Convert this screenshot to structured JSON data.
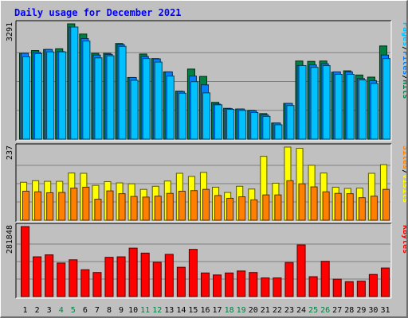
{
  "title": "Daily usage for December 2021",
  "colors": {
    "background": "#c0c0c0",
    "panel": "#c0c0c0",
    "grid": "#808080",
    "title": "#0000ff",
    "hits": "#008040",
    "files": "#0080ff",
    "pages": "#00c0ff",
    "visits": "#ffff00",
    "sites": "#ff8000",
    "kbytes": "#ff0000",
    "weekend_day": "#008040",
    "weekday": "#000000"
  },
  "chart_data": [
    {
      "type": "bar",
      "name": "hits-files-pages",
      "max_label": "3291",
      "ylim": [
        0,
        3291
      ],
      "legend": [
        "Pages",
        "/",
        "Files",
        "/",
        "Hits"
      ],
      "series": [
        {
          "name": "Hits",
          "values": [
            2450,
            2530,
            2560,
            2580,
            3291,
            3000,
            2450,
            2450,
            2730,
            1760,
            2430,
            2300,
            1920,
            1370,
            2000,
            1790,
            1050,
            880,
            860,
            820,
            730,
            460,
            1020,
            2230,
            2220,
            2230,
            1910,
            1950,
            1830,
            1770,
            2660
          ]
        },
        {
          "name": "Files",
          "values": [
            2450,
            2480,
            2560,
            2500,
            3200,
            2870,
            2400,
            2420,
            2700,
            1760,
            2360,
            2290,
            1920,
            1360,
            1800,
            1550,
            1000,
            870,
            860,
            810,
            690,
            460,
            1020,
            2100,
            2120,
            2150,
            1920,
            1920,
            1730,
            1670,
            2400
          ]
        },
        {
          "name": "Pages",
          "values": [
            2350,
            2440,
            2490,
            2490,
            3200,
            2800,
            2320,
            2380,
            2650,
            1680,
            2300,
            2200,
            1800,
            1310,
            1640,
            1320,
            980,
            850,
            820,
            760,
            650,
            410,
            960,
            2100,
            2050,
            2100,
            1850,
            1850,
            1690,
            1590,
            2300
          ]
        }
      ]
    },
    {
      "type": "bar",
      "name": "visits-sites",
      "max_label": "237",
      "ylim": [
        0,
        237
      ],
      "legend": [
        "Sites",
        "/",
        "Visits"
      ],
      "series": [
        {
          "name": "Visits",
          "values": [
            123,
            128,
            126,
            126,
            153,
            152,
            113,
            125,
            121,
            118,
            100,
            110,
            127,
            152,
            142,
            155,
            107,
            90,
            110,
            101,
            207,
            120,
            237,
            233,
            178,
            153,
            107,
            103,
            104,
            152,
            180
          ]
        },
        {
          "name": "Sites",
          "values": [
            94,
            92,
            89,
            90,
            104,
            107,
            68,
            95,
            86,
            77,
            75,
            78,
            87,
            94,
            96,
            100,
            80,
            71,
            76,
            66,
            82,
            82,
            128,
            118,
            108,
            92,
            87,
            86,
            73,
            78,
            100
          ]
        }
      ]
    },
    {
      "type": "bar",
      "name": "kbytes",
      "max_label": "281848",
      "ylim": [
        0,
        281848
      ],
      "legend": [
        "KBytes"
      ],
      "series": [
        {
          "name": "KBytes",
          "values": [
            281848,
            160000,
            168000,
            135000,
            148000,
            108000,
            97000,
            158000,
            160000,
            195000,
            175000,
            138000,
            170000,
            118000,
            190000,
            95000,
            87000,
            95000,
            103000,
            97000,
            75000,
            75000,
            137000,
            208000,
            80000,
            142000,
            70000,
            60000,
            62000,
            89000,
            115000
          ]
        }
      ]
    }
  ],
  "x_labels": [
    {
      "label": "1",
      "weekend": false
    },
    {
      "label": "2",
      "weekend": false
    },
    {
      "label": "3",
      "weekend": false
    },
    {
      "label": "4",
      "weekend": true
    },
    {
      "label": "5",
      "weekend": true
    },
    {
      "label": "6",
      "weekend": false
    },
    {
      "label": "7",
      "weekend": false
    },
    {
      "label": "8",
      "weekend": false
    },
    {
      "label": "9",
      "weekend": false
    },
    {
      "label": "10",
      "weekend": false
    },
    {
      "label": "11",
      "weekend": true
    },
    {
      "label": "12",
      "weekend": true
    },
    {
      "label": "13",
      "weekend": false
    },
    {
      "label": "14",
      "weekend": false
    },
    {
      "label": "15",
      "weekend": false
    },
    {
      "label": "16",
      "weekend": false
    },
    {
      "label": "17",
      "weekend": false
    },
    {
      "label": "18",
      "weekend": true
    },
    {
      "label": "19",
      "weekend": true
    },
    {
      "label": "20",
      "weekend": false
    },
    {
      "label": "21",
      "weekend": false
    },
    {
      "label": "22",
      "weekend": false
    },
    {
      "label": "23",
      "weekend": false
    },
    {
      "label": "24",
      "weekend": false
    },
    {
      "label": "25",
      "weekend": true
    },
    {
      "label": "26",
      "weekend": true
    },
    {
      "label": "27",
      "weekend": false
    },
    {
      "label": "28",
      "weekend": false
    },
    {
      "label": "29",
      "weekend": false
    },
    {
      "label": "30",
      "weekend": false
    },
    {
      "label": "31",
      "weekend": false
    }
  ]
}
